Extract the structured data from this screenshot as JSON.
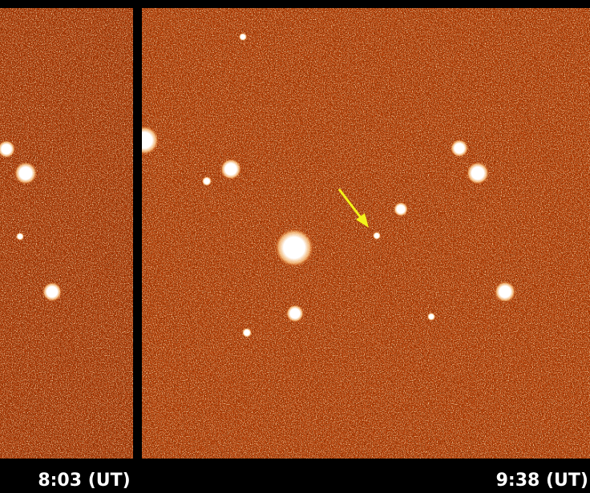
{
  "labels": {
    "left": "8:03 (UT)",
    "right": "9:38 (UT)"
  }
}
